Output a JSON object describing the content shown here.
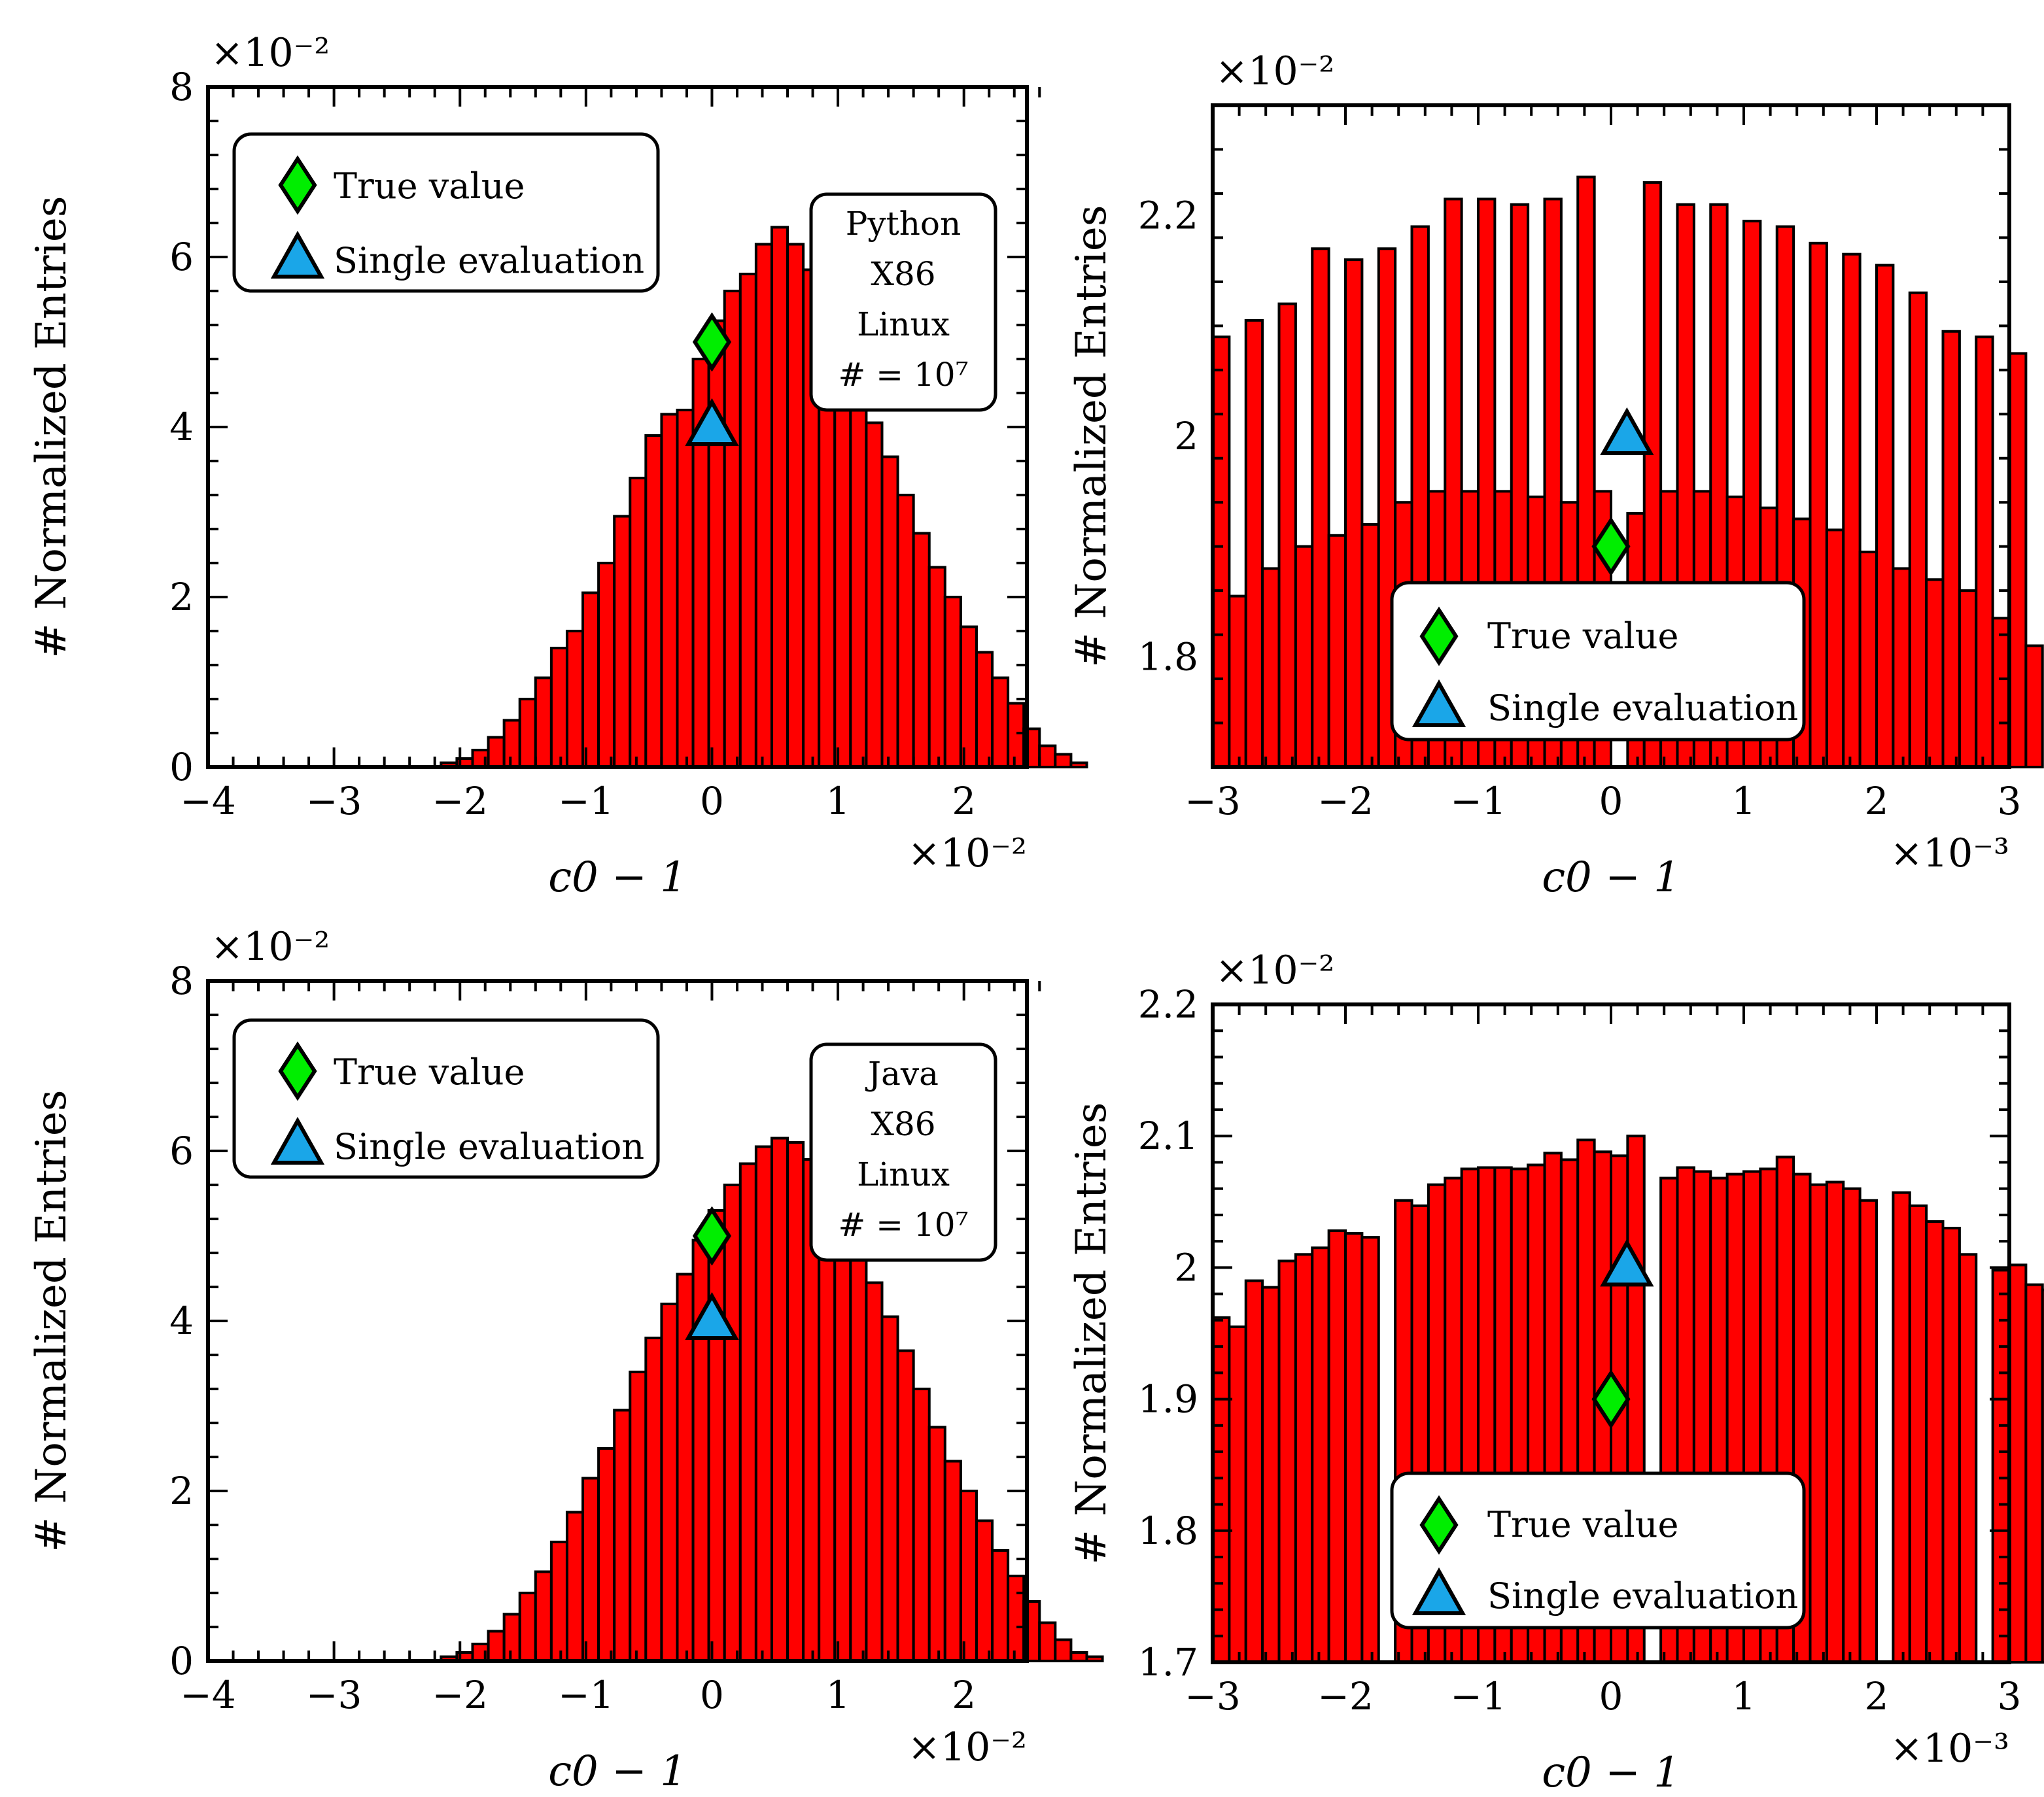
{
  "style": {
    "bar_color": "#ff0000",
    "edge_color": "#000000",
    "true_marker_color": "#00ee00",
    "single_marker_color": "#1aa6e8"
  },
  "chart_data": [
    {
      "type": "bar",
      "xlabel": "c0 − 1",
      "ylabel": "# Normalized Entries",
      "x_multiplier": "×10⁻²",
      "y_multiplier": "×10⁻²",
      "xlim": [
        -4,
        2.5
      ],
      "ylim": [
        0,
        8
      ],
      "x_ticks": [
        -4,
        -3,
        -2,
        -1,
        0,
        1,
        2
      ],
      "x_tick_labels": [
        "−4",
        "−3",
        "−2",
        "−1",
        "0",
        "1",
        "2"
      ],
      "y_ticks": [
        0,
        2,
        4,
        6,
        8
      ],
      "y_tick_labels": [
        "0",
        "2",
        "4",
        "6",
        "8"
      ],
      "bin_start": -2.15,
      "bin_width": 0.125,
      "values": [
        0.05,
        0.1,
        0.2,
        0.35,
        0.55,
        0.8,
        1.05,
        1.4,
        1.6,
        2.05,
        2.4,
        2.95,
        3.4,
        3.9,
        4.15,
        4.2,
        4.8,
        5.25,
        5.6,
        5.8,
        6.15,
        6.35,
        6.15,
        5.85,
        5.15,
        4.85,
        4.45,
        4.05,
        3.65,
        3.2,
        2.75,
        2.35,
        2.0,
        1.65,
        1.35,
        1.05,
        0.75,
        0.45,
        0.25,
        0.15,
        0.05
      ],
      "true_value": {
        "x": 0,
        "y": 5.0
      },
      "single_evaluation": {
        "x": 0,
        "y": 4.0
      },
      "legend": {
        "entries": [
          "True value",
          "Single evaluation"
        ],
        "placement": "upper-left"
      },
      "info": [
        "Python",
        "X86",
        "Linux",
        "# = 10⁷"
      ]
    },
    {
      "type": "bar",
      "xlabel": "c0 − 1",
      "ylabel": "# Normalized Entries",
      "x_multiplier": "×10⁻³",
      "y_multiplier": "×10⁻²",
      "xlim": [
        -3,
        3
      ],
      "ylim": [
        1.7,
        2.3
      ],
      "x_ticks": [
        -3,
        -2,
        -1,
        0,
        1,
        2,
        3
      ],
      "x_tick_labels": [
        "−3",
        "−2",
        "−1",
        "0",
        "1",
        "2",
        "3"
      ],
      "y_ticks": [
        1.8,
        2.0,
        2.2
      ],
      "y_tick_labels": [
        "1.8",
        "2",
        "2.2"
      ],
      "bin_start": -3.0,
      "bin_width": 0.125,
      "values": [
        2.09,
        1.855,
        2.105,
        1.88,
        2.12,
        1.9,
        2.17,
        1.91,
        2.16,
        1.92,
        2.17,
        1.94,
        2.19,
        1.95,
        2.215,
        1.95,
        2.215,
        1.95,
        2.21,
        1.945,
        2.215,
        1.94,
        2.235,
        1.95,
        0,
        1.93,
        2.23,
        1.95,
        2.21,
        1.95,
        2.21,
        1.945,
        2.195,
        1.935,
        2.19,
        1.925,
        2.175,
        1.915,
        2.165,
        1.895,
        2.155,
        1.88,
        2.13,
        1.87,
        2.095,
        1.86,
        2.09,
        1.835,
        2.075,
        1.81
      ],
      "true_value": {
        "x": 0,
        "y": 1.9
      },
      "single_evaluation": {
        "x": 0.12,
        "y": 2.0
      },
      "legend": {
        "entries": [
          "True value",
          "Single evaluation"
        ],
        "placement": "lower-center"
      }
    },
    {
      "type": "bar",
      "xlabel": "c0 − 1",
      "ylabel": "# Normalized Entries",
      "x_multiplier": "×10⁻²",
      "y_multiplier": "×10⁻²",
      "xlim": [
        -4,
        2.5
      ],
      "ylim": [
        0,
        8
      ],
      "x_ticks": [
        -4,
        -3,
        -2,
        -1,
        0,
        1,
        2
      ],
      "x_tick_labels": [
        "−4",
        "−3",
        "−2",
        "−1",
        "0",
        "1",
        "2"
      ],
      "y_ticks": [
        0,
        2,
        4,
        6,
        8
      ],
      "y_tick_labels": [
        "0",
        "2",
        "4",
        "6",
        "8"
      ],
      "bin_start": -2.15,
      "bin_width": 0.125,
      "values": [
        0.05,
        0.1,
        0.2,
        0.35,
        0.55,
        0.8,
        1.05,
        1.4,
        1.75,
        2.15,
        2.5,
        2.95,
        3.4,
        3.8,
        4.2,
        4.55,
        4.95,
        5.3,
        5.6,
        5.85,
        6.05,
        6.15,
        6.1,
        5.9,
        5.6,
        5.25,
        4.9,
        4.45,
        4.05,
        3.65,
        3.2,
        2.75,
        2.35,
        2.0,
        1.65,
        1.3,
        1.0,
        0.7,
        0.45,
        0.25,
        0.1,
        0.05
      ],
      "true_value": {
        "x": 0,
        "y": 5.0
      },
      "single_evaluation": {
        "x": 0,
        "y": 4.0
      },
      "legend": {
        "entries": [
          "True value",
          "Single evaluation"
        ],
        "placement": "upper-left"
      },
      "info": [
        "Java",
        "X86",
        "Linux",
        "# = 10⁷"
      ]
    },
    {
      "type": "bar",
      "xlabel": "c0 − 1",
      "ylabel": "# Normalized Entries",
      "x_multiplier": "×10⁻³",
      "y_multiplier": "×10⁻²",
      "xlim": [
        -3,
        3
      ],
      "ylim": [
        1.7,
        2.2
      ],
      "x_ticks": [
        -3,
        -2,
        -1,
        0,
        1,
        2,
        3
      ],
      "x_tick_labels": [
        "−3",
        "−2",
        "−1",
        "0",
        "1",
        "2",
        "3"
      ],
      "y_ticks": [
        1.7,
        1.8,
        1.9,
        2.0,
        2.1,
        2.2
      ],
      "y_tick_labels": [
        "1.7",
        "1.8",
        "1.9",
        "2",
        "2.1",
        "2.2"
      ],
      "bin_start": -3.0,
      "bin_width": 0.125,
      "values": [
        1.962,
        1.955,
        1.99,
        1.985,
        2.005,
        2.01,
        2.015,
        2.028,
        2.026,
        2.023,
        0,
        2.051,
        2.047,
        2.063,
        2.068,
        2.075,
        2.076,
        2.076,
        2.075,
        2.078,
        2.087,
        2.082,
        2.097,
        2.088,
        2.085,
        2.1,
        0,
        2.068,
        2.076,
        2.073,
        2.068,
        2.071,
        2.073,
        2.075,
        2.084,
        2.071,
        2.063,
        2.065,
        2.06,
        2.051,
        0,
        2.057,
        2.047,
        2.035,
        2.03,
        2.01,
        0,
        1.998,
        2.002,
        1.987,
        1.983,
        1.976,
        1.965,
        1.955,
        1.937,
        1.948,
        1.925,
        1.925
      ],
      "true_value": {
        "x": 0,
        "y": 1.9
      },
      "single_evaluation": {
        "x": 0.12,
        "y": 2.0
      },
      "legend": {
        "entries": [
          "True value",
          "Single evaluation"
        ],
        "placement": "lower-center"
      }
    }
  ]
}
